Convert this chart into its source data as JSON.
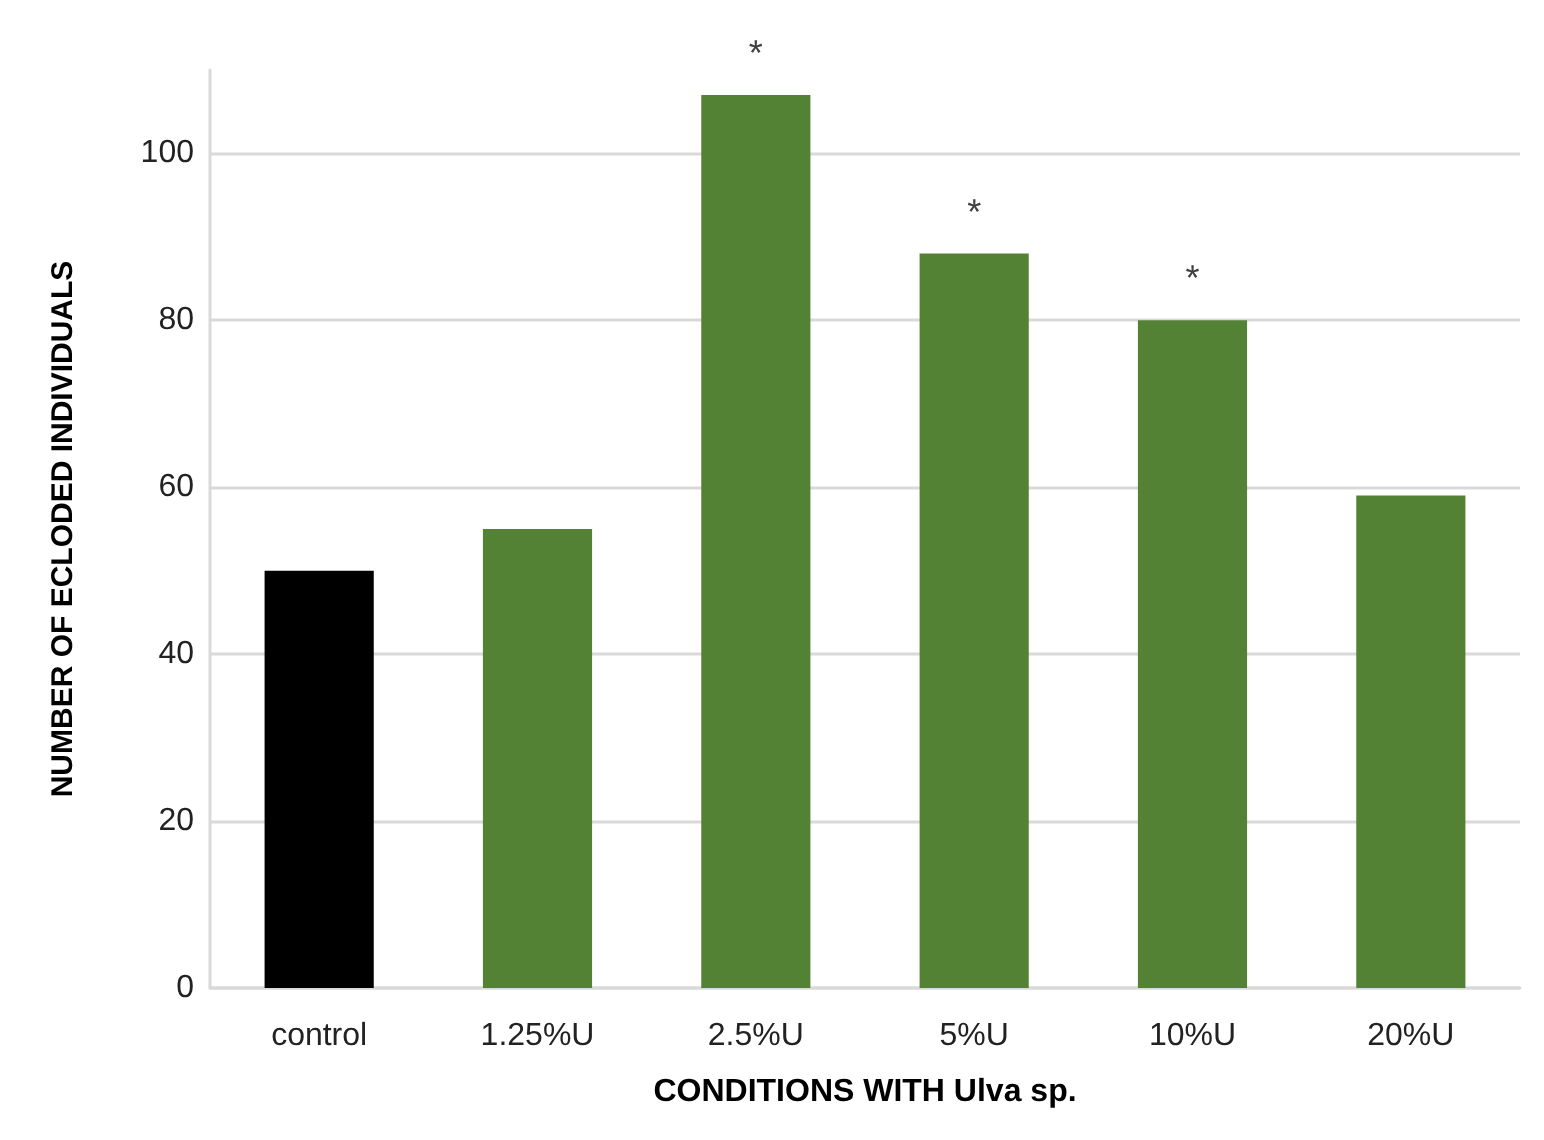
{
  "chart_data": {
    "type": "bar",
    "xlabel": "CONDITIONS WITH Ulva sp.",
    "ylabel": "NUMBER OF ECLODED INDIVIDUALS",
    "categories": [
      "control",
      "1.25%U",
      "2.5%U",
      "5%U",
      "10%U",
      "20%U"
    ],
    "values": [
      50,
      55,
      107,
      88,
      80,
      59
    ],
    "colors": [
      "#000000",
      "#548235",
      "#548235",
      "#548235",
      "#548235",
      "#548235"
    ],
    "ylim": [
      0,
      110
    ],
    "yticks": [
      0,
      20,
      40,
      60,
      80,
      100
    ],
    "grid": "y",
    "annotations": [
      {
        "text": "*",
        "x": "2.5%U",
        "y": 107
      },
      {
        "text": "*",
        "x": "5%U",
        "y": 88
      },
      {
        "text": "*",
        "x": "10%U",
        "y": 80
      }
    ]
  }
}
